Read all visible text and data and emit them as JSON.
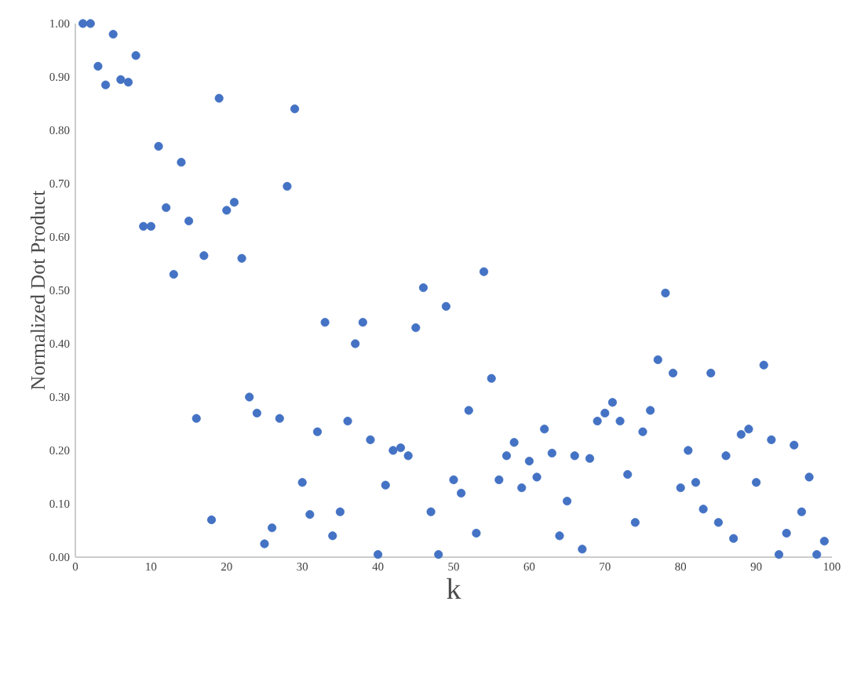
{
  "chart_data": {
    "type": "scatter",
    "xlabel": "k",
    "ylabel": "Normalized Dot Product",
    "color": "#4472c4",
    "marker": "circle",
    "grid": false,
    "x": [
      1,
      2,
      3,
      4,
      5,
      6,
      7,
      8,
      9,
      10,
      11,
      12,
      13,
      14,
      15,
      16,
      17,
      18,
      19,
      20,
      21,
      22,
      23,
      24,
      25,
      26,
      27,
      28,
      29,
      30,
      31,
      32,
      33,
      34,
      35,
      36,
      37,
      38,
      39,
      40,
      41,
      42,
      43,
      44,
      45,
      46,
      47,
      48,
      49,
      50,
      51,
      52,
      53,
      54,
      55,
      56,
      57,
      58,
      59,
      60,
      61,
      62,
      63,
      64,
      65,
      66,
      67,
      68,
      69,
      70,
      71,
      72,
      73,
      74,
      75,
      76,
      77,
      78,
      79,
      80,
      81,
      82,
      83,
      84,
      85,
      86,
      87,
      88,
      89,
      90,
      91,
      92,
      93,
      94,
      95,
      96,
      97,
      98,
      99
    ],
    "values": [
      1.0,
      1.0,
      0.92,
      0.885,
      0.98,
      0.895,
      0.89,
      0.94,
      0.62,
      0.62,
      0.77,
      0.655,
      0.53,
      0.74,
      0.63,
      0.26,
      0.565,
      0.07,
      0.86,
      0.65,
      0.665,
      0.56,
      0.3,
      0.27,
      0.025,
      0.055,
      0.26,
      0.695,
      0.84,
      0.14,
      0.08,
      0.235,
      0.44,
      0.04,
      0.085,
      0.255,
      0.4,
      0.44,
      0.22,
      0.005,
      0.135,
      0.2,
      0.205,
      0.19,
      0.43,
      0.505,
      0.085,
      0.005,
      0.47,
      0.145,
      0.12,
      0.275,
      0.045,
      0.535,
      0.335,
      0.145,
      0.19,
      0.215,
      0.13,
      0.18,
      0.15,
      0.24,
      0.195,
      0.04,
      0.105,
      0.19,
      0.015,
      0.185,
      0.255,
      0.27,
      0.29,
      0.255,
      0.155,
      0.065,
      0.235,
      0.275,
      0.37,
      0.495,
      0.345,
      0.13,
      0.2,
      0.14,
      0.09,
      0.345,
      0.065,
      0.19,
      0.035,
      0.23,
      0.24,
      0.14,
      0.36,
      0.22,
      0.005,
      0.045,
      0.21,
      0.085,
      0.15,
      0.005,
      0.03
    ],
    "xlim": [
      0,
      100
    ],
    "ylim": [
      0,
      1
    ],
    "xticks": [
      0,
      10,
      20,
      30,
      40,
      50,
      60,
      70,
      80,
      90,
      100
    ],
    "yticks": [
      {
        "value": 0,
        "label": "0.00"
      },
      {
        "value": 0.1,
        "label": "0.10"
      },
      {
        "value": 0.2,
        "label": "0.20"
      },
      {
        "value": 0.3,
        "label": "0.30"
      },
      {
        "value": 0.4,
        "label": "0.40"
      },
      {
        "value": 0.5,
        "label": "0.50"
      },
      {
        "value": 0.6,
        "label": "0.60"
      },
      {
        "value": 0.7,
        "label": "0.70"
      },
      {
        "value": 0.8,
        "label": "0.80"
      },
      {
        "value": 0.9,
        "label": "0.90"
      },
      {
        "value": 1,
        "label": "1.00"
      }
    ]
  }
}
